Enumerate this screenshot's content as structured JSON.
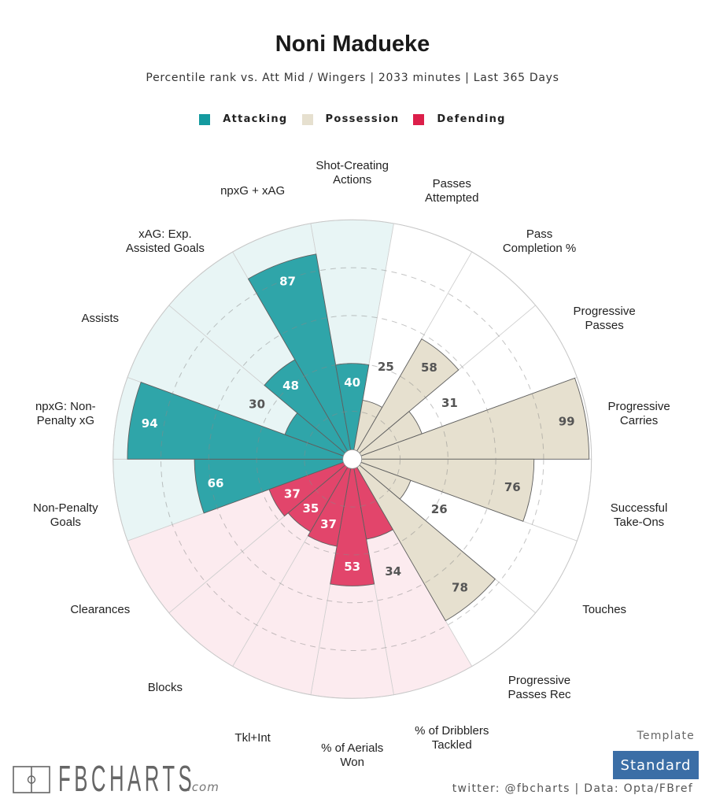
{
  "header": {
    "title": "Noni Madueke",
    "subtitle": "Percentile rank vs. Att Mid / Wingers | 2033 minutes | Last 365 Days"
  },
  "legend": [
    {
      "label": "Attacking",
      "color": "#149a9f"
    },
    {
      "label": "Possession",
      "color": "#e6e0cf"
    },
    {
      "label": "Defending",
      "color": "#dc1f4a"
    }
  ],
  "chart_data": {
    "type": "bar",
    "projection": "polar",
    "title": "Noni Madueke",
    "subtitle": "Percentile rank vs. Att Mid / Wingers | 2033 minutes | Last 365 Days",
    "xlabel": "",
    "ylabel": "Percentile rank",
    "rlim": [
      0,
      100
    ],
    "gridlines": [
      20,
      40,
      60,
      80
    ],
    "grid": true,
    "legend_position": "top-center",
    "categories": [
      "Non-Penalty\nGoals",
      "npxG: Non-\nPenalty xG",
      "Assists",
      "xAG: Exp.\nAssisted Goals",
      "npxG + xAG",
      "Shot-Creating\nActions",
      "Passes\nAttempted",
      "Pass\nCompletion %",
      "Progressive\nPasses",
      "Progressive\nCarries",
      "Successful\nTake-Ons",
      "Touches",
      "Progressive\nPasses Rec",
      "% of Dribblers\nTackled",
      "% of Aerials\nWon",
      "Tkl+Int",
      "Blocks",
      "Clearances"
    ],
    "values": [
      66,
      94,
      30,
      48,
      87,
      40,
      25,
      58,
      31,
      99,
      76,
      26,
      78,
      34,
      53,
      37,
      35,
      37
    ],
    "groups": [
      "Attacking",
      "Attacking",
      "Attacking",
      "Attacking",
      "Attacking",
      "Attacking",
      "Possession",
      "Possession",
      "Possession",
      "Possession",
      "Possession",
      "Possession",
      "Possession",
      "Defending",
      "Defending",
      "Defending",
      "Defending",
      "Defending"
    ],
    "group_colors": {
      "Attacking": {
        "bar": "#2fa5a9",
        "background": "#e8f5f5",
        "label": "#ffffff"
      },
      "Possession": {
        "bar": "#e6e0cf",
        "background": "#ffffff",
        "label": "#555555"
      },
      "Defending": {
        "bar": "#e2456b",
        "background": "#fcebef",
        "label": "#ffffff"
      }
    },
    "outside_label_color": "#555555"
  },
  "footer": {
    "logo_text": "FBCHARTS",
    "logo_suffix": ".com",
    "template_label": "Template",
    "template_value": "Standard",
    "credit": "twitter: @fbcharts | Data: Opta/FBref"
  }
}
